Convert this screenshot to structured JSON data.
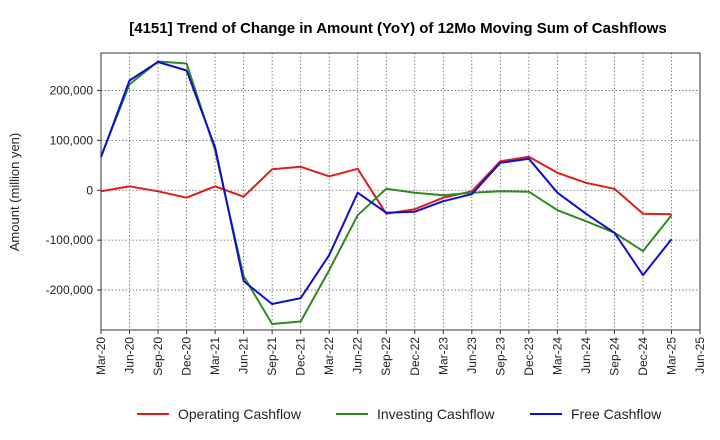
{
  "chart_data": {
    "type": "line",
    "title": "[4151]  Trend of Change in Amount (YoY) of 12Mo Moving Sum of Cashflows",
    "xlabel": "",
    "ylabel": "Amount (million yen)",
    "ylim": [
      -280000,
      275000
    ],
    "yticks": [
      -200000,
      -100000,
      0,
      100000,
      200000
    ],
    "ytick_labels": [
      "-200,000",
      "-100,000",
      "0",
      "100,000",
      "200,000"
    ],
    "x_tick_labels": [
      "Mar-20",
      "Jun-20",
      "Sep-20",
      "Dec-20",
      "Mar-21",
      "Jun-21",
      "Sep-21",
      "Dec-21",
      "Mar-22",
      "Jun-22",
      "Sep-22",
      "Dec-22",
      "Mar-23",
      "Jun-23",
      "Sep-23",
      "Dec-23",
      "Mar-24",
      "Jun-24",
      "Sep-24",
      "Dec-24",
      "Mar-25",
      "Jun-25"
    ],
    "grid": true,
    "legend_position": "bottom",
    "series": [
      {
        "name": "Operating Cashflow",
        "color": "#e31a1c",
        "values": [
          -2000,
          8000,
          -2000,
          -15000,
          8000,
          -13000,
          42000,
          47000,
          28000,
          43000,
          -47000,
          -38000,
          -15000,
          -2000,
          58000,
          67000,
          35000,
          15000,
          3000,
          -47000,
          -48000
        ]
      },
      {
        "name": "Investing Cashflow",
        "color": "#2e8b22",
        "values": [
          68000,
          212000,
          258000,
          254000,
          80000,
          -172000,
          -268000,
          -263000,
          -160000,
          -50000,
          3000,
          -5000,
          -10000,
          -5000,
          -2000,
          -3000,
          -40000,
          -62000,
          -85000,
          -122000,
          -50000
        ]
      },
      {
        "name": "Free Cashflow",
        "color": "#1010cc",
        "values": [
          66000,
          220000,
          257000,
          240000,
          86000,
          -182000,
          -228000,
          -216000,
          -130000,
          -5000,
          -45000,
          -43000,
          -22000,
          -8000,
          55000,
          63000,
          -5000,
          -47000,
          -85000,
          -170000,
          -98000
        ]
      }
    ]
  }
}
